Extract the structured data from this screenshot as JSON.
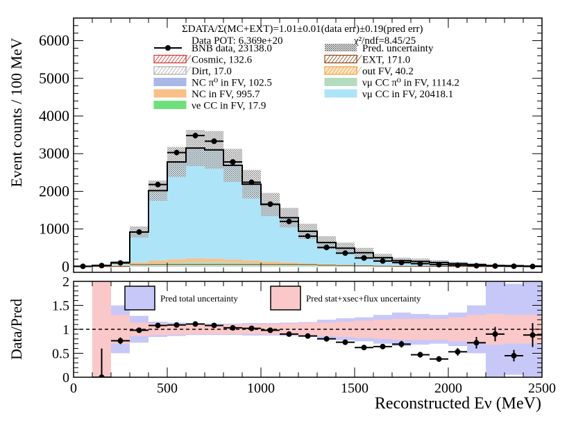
{
  "chart_data": [
    {
      "type": "stacked-histogram",
      "header": {
        "ratio": "ΣDATA/Σ(MC+EXT)=1.01±0.01(data err)±0.19(pred err)",
        "pot": "Data POT: 6.369e+20",
        "chi2": "χ²/ndf=8.45/25"
      },
      "ylabel": "Event counts / 100 MeV",
      "xlim": [
        0,
        2500
      ],
      "ylim": [
        -150,
        6600
      ],
      "yticks": [
        0,
        1000,
        2000,
        3000,
        4000,
        5000,
        6000
      ],
      "bin_edges": [
        0,
        100,
        200,
        300,
        400,
        500,
        600,
        700,
        800,
        900,
        1000,
        1100,
        1200,
        1300,
        1400,
        1500,
        1600,
        1700,
        1800,
        1900,
        2000,
        2100,
        2200,
        2300,
        2400,
        2500
      ],
      "legend": [
        {
          "label": "BNB data, 23138.0",
          "key": "data",
          "color": "#000000"
        },
        {
          "label": "Pred. uncertainty",
          "key": "unc",
          "color": "#999999"
        },
        {
          "label": "Cosmic, 132.6",
          "key": "cosmic",
          "color": "#cc3333"
        },
        {
          "label": "EXT, 171.0",
          "key": "ext",
          "color": "#8b4513"
        },
        {
          "label": "Dirt, 17.0",
          "key": "dirt",
          "color": "#aaaaaa"
        },
        {
          "label": "out FV, 40.2",
          "key": "outfv",
          "color": "#f0a040"
        },
        {
          "label": "NC π⁰ in FV,  102.5",
          "key": "ncpi0",
          "color": "#aab8e8"
        },
        {
          "label": "νμ CC π⁰ in FV, 1114.2",
          "key": "numuccpi0",
          "color": "#b4dcc0"
        },
        {
          "label": "NC in FV, 995.7",
          "key": "nc",
          "color": "#f8c088"
        },
        {
          "label": "νμ CC in FV, 20418.1",
          "key": "numucc",
          "color": "#aee4f8"
        },
        {
          "label": "νe CC in FV, 17.9",
          "key": "necc",
          "color": "#6ee07a"
        }
      ],
      "data": [
        10,
        30,
        100,
        920,
        2180,
        3030,
        3480,
        3330,
        2780,
        2240,
        1660,
        1200,
        810,
        510,
        360,
        230,
        150,
        110,
        80,
        55,
        40,
        25,
        18,
        12,
        6
      ],
      "data_err": [
        5,
        10,
        15,
        40,
        60,
        70,
        75,
        72,
        66,
        60,
        50,
        45,
        35,
        28,
        22,
        18,
        15,
        12,
        10,
        9,
        8,
        6,
        5,
        4,
        3
      ],
      "pred_total": [
        10,
        35,
        110,
        920,
        2020,
        2780,
        3150,
        3100,
        2690,
        2190,
        1650,
        1300,
        940,
        640,
        490,
        370,
        240,
        160,
        140,
        110,
        80,
        55,
        30,
        25,
        15
      ],
      "pred_unc": [
        15,
        20,
        40,
        150,
        270,
        400,
        480,
        500,
        440,
        380,
        310,
        260,
        200,
        170,
        150,
        130,
        100,
        80,
        75,
        60,
        45,
        38,
        28,
        25,
        20
      ],
      "component_stack": {
        "necc": [
          0,
          0,
          1,
          2,
          3,
          3,
          3,
          3,
          2,
          2,
          1,
          1,
          1,
          1,
          1,
          0,
          0,
          0,
          0,
          0,
          0,
          0,
          0,
          0,
          0
        ],
        "nc": [
          2,
          6,
          20,
          60,
          80,
          90,
          95,
          90,
          80,
          70,
          55,
          45,
          35,
          25,
          20,
          15,
          10,
          8,
          6,
          5,
          4,
          3,
          2,
          2,
          1
        ],
        "numuccpi0": [
          1,
          3,
          10,
          40,
          70,
          90,
          110,
          110,
          100,
          90,
          75,
          60,
          45,
          35,
          25,
          20,
          15,
          10,
          8,
          6,
          5,
          3,
          2,
          2,
          1
        ],
        "ncpi0": [
          0,
          2,
          5,
          10,
          12,
          12,
          11,
          10,
          8,
          6,
          4,
          3,
          2,
          2,
          1,
          1,
          1,
          1,
          1,
          0,
          0,
          0,
          0,
          0,
          0
        ]
      }
    },
    {
      "type": "ratio",
      "ylabel": "Data/Pred",
      "xlabel": "Reconstructed Eν (MeV)",
      "xlim": [
        0,
        2500
      ],
      "ylim": [
        0,
        2
      ],
      "xticks": [
        0,
        500,
        1000,
        1500,
        2000,
        2500
      ],
      "yticks": [
        0,
        0.5,
        1,
        1.5,
        2
      ],
      "legend": [
        {
          "label": "Pred total uncertainty",
          "color": "#c8c8f8"
        },
        {
          "label": "Pred stat+xsec+flux uncertainty",
          "color": "#fac8c8"
        }
      ],
      "x": [
        150,
        250,
        350,
        450,
        550,
        650,
        750,
        850,
        950,
        1050,
        1150,
        1250,
        1350,
        1450,
        1550,
        1650,
        1750,
        1850,
        1950,
        2050,
        2150,
        2250,
        2350,
        2450
      ],
      "ratio": [
        0.0,
        0.76,
        0.98,
        1.08,
        1.09,
        1.11,
        1.08,
        1.03,
        1.02,
        0.98,
        0.9,
        0.86,
        0.8,
        0.73,
        0.62,
        0.64,
        0.69,
        0.47,
        0.38,
        0.53,
        0.72,
        0.9,
        0.45,
        0.88
      ],
      "ratio_err": [
        0.6,
        0.07,
        0.03,
        0.03,
        0.03,
        0.02,
        0.02,
        0.02,
        0.03,
        0.03,
        0.03,
        0.03,
        0.04,
        0.04,
        0.04,
        0.05,
        0.07,
        0.06,
        0.06,
        0.08,
        0.12,
        0.15,
        0.12,
        0.25
      ],
      "total_unc": [
        0.0,
        0.5,
        0.28,
        0.16,
        0.14,
        0.12,
        0.12,
        0.12,
        0.13,
        0.13,
        0.14,
        0.15,
        0.2,
        0.23,
        0.25,
        0.3,
        0.35,
        0.32,
        0.3,
        0.35,
        0.5,
        1.0,
        0.95,
        1.0
      ],
      "stat_xsec_flux_unc": [
        1.0,
        0.3,
        0.14,
        0.12,
        0.11,
        0.1,
        0.1,
        0.1,
        0.1,
        0.11,
        0.12,
        0.13,
        0.14,
        0.16,
        0.18,
        0.2,
        0.22,
        0.22,
        0.22,
        0.25,
        0.3,
        0.32,
        0.3,
        0.3
      ]
    }
  ]
}
